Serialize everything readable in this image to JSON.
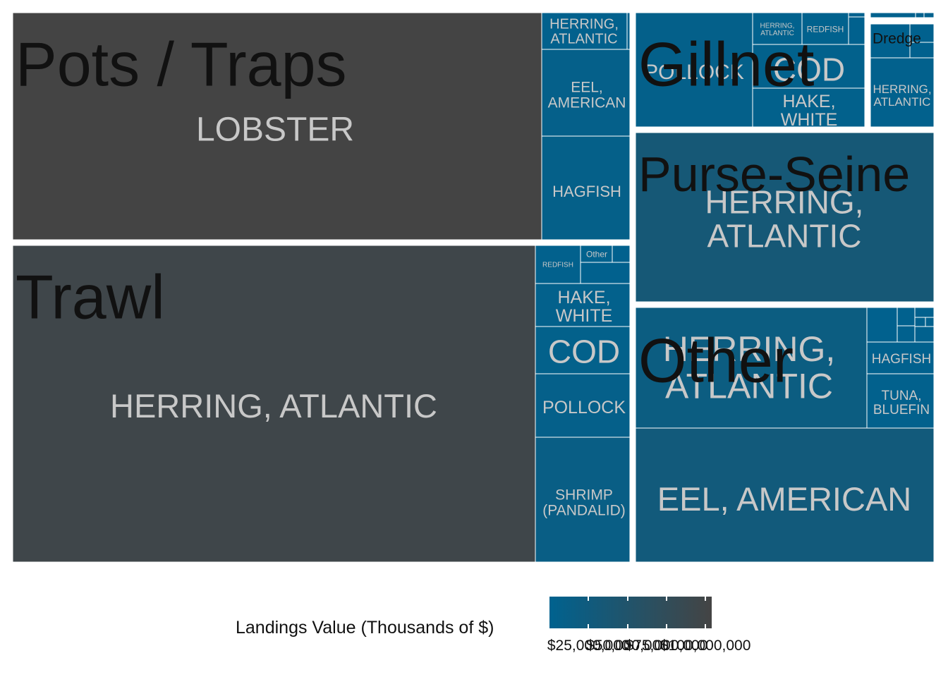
{
  "chart_data": {
    "type": "treemap",
    "value_unit": "Thousands of $",
    "groups": [
      {
        "name": "Pots / Traps",
        "tiles": [
          {
            "name": "LOBSTER",
            "value": 104000
          },
          {
            "name": "HERRING, ATLANTIC",
            "value": 2400
          },
          {
            "name": "EEL, AMERICAN",
            "value": 7200
          },
          {
            "name": "HAGFISH",
            "value": 8300
          }
        ]
      },
      {
        "name": "Trawl",
        "tiles": [
          {
            "name": "HERRING, ATLANTIC",
            "value": 96000
          },
          {
            "name": "REDFISH",
            "value": 3400
          },
          {
            "name": "Other",
            "value": 1100
          },
          {
            "name": "HAKE, WHITE",
            "value": 4600
          },
          {
            "name": "COD",
            "value": 5000
          },
          {
            "name": "POLLOCK",
            "value": 6900
          },
          {
            "name": "SHRIMP (PANDALID)",
            "value": 13500
          }
        ]
      },
      {
        "name": "Gillnet",
        "tiles": [
          {
            "name": "POLLOCK",
            "value": 6400
          },
          {
            "name": "HERRING, ATLANTIC",
            "value": 900
          },
          {
            "name": "REDFISH",
            "value": 800
          },
          {
            "name": "COD",
            "value": 3600
          },
          {
            "name": "HAKE, WHITE",
            "value": 3600
          }
        ]
      },
      {
        "name": "Dredge",
        "tiles": [
          {
            "name": "HERRING, ATLANTIC",
            "value": 2500
          }
        ]
      },
      {
        "name": "Purse-Seine",
        "tiles": [
          {
            "name": "HERRING, ATLANTIC",
            "value": 34000
          }
        ]
      },
      {
        "name": "Other",
        "tiles": [
          {
            "name": "HERRING, ATLANTIC",
            "value": 19000
          },
          {
            "name": "HAGFISH",
            "value": 1900
          },
          {
            "name": "TUNA, BLUEFIN",
            "value": 2900
          },
          {
            "name": "EEL, AMERICAN",
            "value": 28000
          }
        ]
      }
    ],
    "legend": {
      "title": "Landings Value (Thousands of $)",
      "position": "bottom",
      "range": [
        0,
        104000
      ],
      "breaks": [
        25000,
        50000,
        75000,
        100000
      ],
      "break_labels": [
        "$25,000,000",
        "$50,000,000",
        "$75,000,000",
        "$100,000,000"
      ],
      "color_low": "#00628f",
      "color_high": "#444444"
    }
  }
}
